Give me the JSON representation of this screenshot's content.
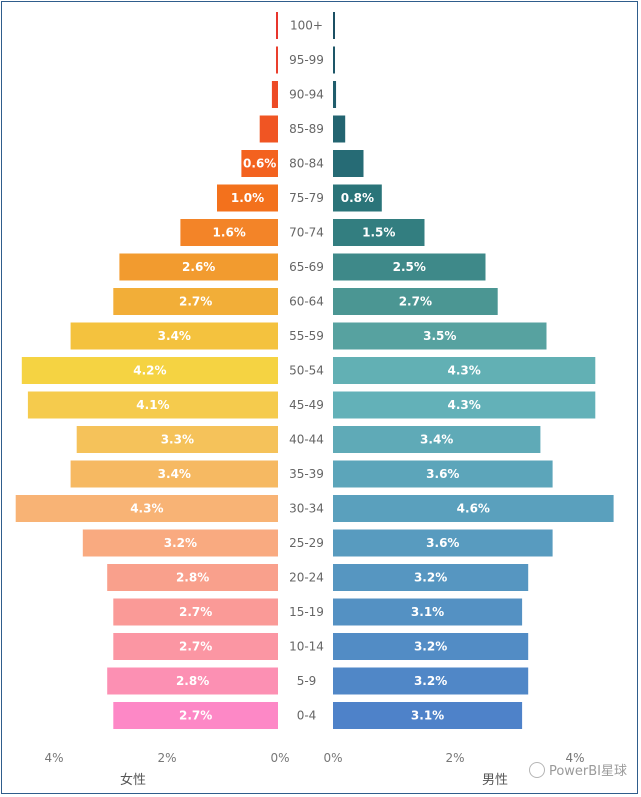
{
  "chart_data": {
    "type": "bar",
    "orientation": "horizontal-population-pyramid",
    "categories": [
      "100+",
      "95-99",
      "90-94",
      "85-89",
      "80-84",
      "75-79",
      "70-74",
      "65-69",
      "60-64",
      "55-59",
      "50-54",
      "45-49",
      "40-44",
      "35-39",
      "30-34",
      "25-29",
      "20-24",
      "15-19",
      "10-14",
      "5-9",
      "0-4"
    ],
    "series": [
      {
        "name": "女性",
        "side": "left",
        "values": [
          0.02,
          0.03,
          0.1,
          0.3,
          0.6,
          1.0,
          1.6,
          2.6,
          2.7,
          3.4,
          4.2,
          4.1,
          3.3,
          3.4,
          4.3,
          3.2,
          2.8,
          2.7,
          2.7,
          2.8,
          2.7
        ],
        "labels": [
          "",
          "",
          "",
          "",
          "0.6%",
          "1.0%",
          "1.6%",
          "2.6%",
          "2.7%",
          "3.4%",
          "4.2%",
          "4.1%",
          "3.3%",
          "3.4%",
          "4.3%",
          "3.2%",
          "2.8%",
          "2.7%",
          "2.7%",
          "2.8%",
          "2.7%"
        ],
        "colors": [
          "#e8352c",
          "#ea3f2d",
          "#ed4a25",
          "#f05523",
          "#f3621f",
          "#f3711c",
          "#f38428",
          "#f29b2f",
          "#f2ae38",
          "#f4c23e",
          "#f5d342",
          "#f5cb4d",
          "#f5c25a",
          "#f6b962",
          "#f8b375",
          "#f9aa80",
          "#f9a08c",
          "#fa9a97",
          "#fb96a3",
          "#fc90b3",
          "#fd88c6"
        ]
      },
      {
        "name": "男性",
        "side": "right",
        "values": [
          0.03,
          0.03,
          0.05,
          0.2,
          0.5,
          0.8,
          1.5,
          2.5,
          2.7,
          3.5,
          4.3,
          4.3,
          3.4,
          3.6,
          4.6,
          3.6,
          3.2,
          3.1,
          3.2,
          3.2,
          3.1
        ],
        "labels": [
          "",
          "",
          "",
          "",
          "",
          "0.8%",
          "1.5%",
          "2.5%",
          "2.7%",
          "3.5%",
          "4.3%",
          "4.3%",
          "3.4%",
          "3.6%",
          "4.6%",
          "3.6%",
          "3.2%",
          "3.1%",
          "3.2%",
          "3.2%",
          "3.1%"
        ],
        "colors": [
          "#1b4f63",
          "#1d5668",
          "#205d6c",
          "#236470",
          "#266b75",
          "#2a7479",
          "#337e80",
          "#3e8989",
          "#4b9693",
          "#57a2a0",
          "#62b0b4",
          "#63b1b8",
          "#5faab7",
          "#5ca5ba",
          "#5aa0bd",
          "#589bbf",
          "#5696c1",
          "#5491c3",
          "#528cc5",
          "#5087c7",
          "#4e82c9"
        ]
      }
    ],
    "xaxis": {
      "ticks_left": [
        "4%",
        "2%",
        "0%"
      ],
      "ticks_right": [
        "0%",
        "2%",
        "4%"
      ],
      "max": 4.0
    },
    "gender_labels": {
      "left": "女性",
      "right": "男性"
    }
  },
  "watermark": {
    "text": "PowerBI星球"
  }
}
